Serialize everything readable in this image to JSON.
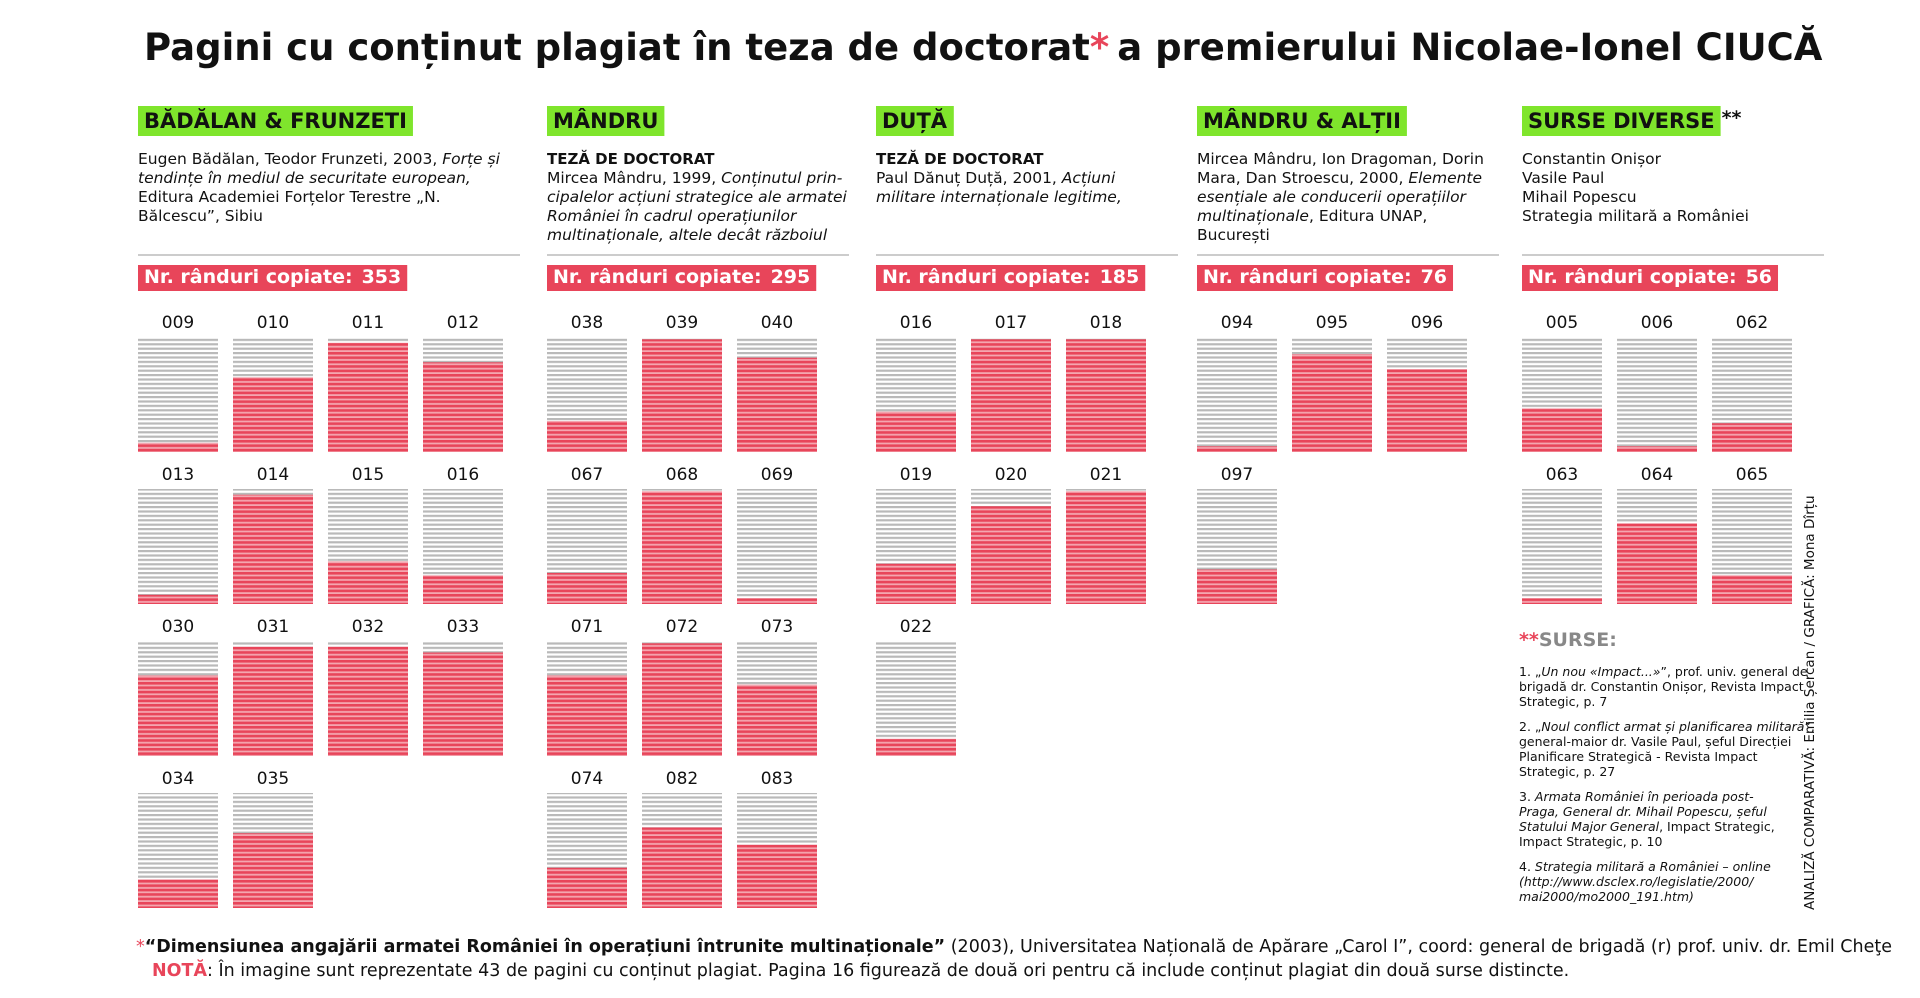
{
  "title": "Pagini cu conținut plagiat în teza de doctorat",
  "title_mark": "*",
  "title_rest": "a  premierului Nicolae-Ionel CIUCĂ",
  "groups": [
    {
      "name": "BĂDĂLAN & FRUNZETI",
      "source": [
        [
          {
            "text": "Eugen Bădălan, Teodor Frunzeti, 2003, "
          },
          {
            "text": "Forțe și",
            "italic": true
          }
        ],
        [
          {
            "text": "tendințe în mediul de securitate european,",
            "italic": true
          }
        ],
        [
          {
            "text": "Editura Academiei Forțelor Terestre „N."
          }
        ],
        [
          {
            "text": "Bălcescu”, Sibiu"
          }
        ]
      ],
      "count_label": "Nr. rânduri copiate:",
      "count": 353,
      "pages": [
        {
          "label": "009",
          "copied": 8
        },
        {
          "label": "010",
          "copied": 65
        },
        {
          "label": "011",
          "copied": 95
        },
        {
          "label": "012",
          "copied": 78
        },
        {
          "label": "013",
          "copied": 8
        },
        {
          "label": "014",
          "copied": 95
        },
        {
          "label": "015",
          "copied": 37
        },
        {
          "label": "016",
          "copied": 25
        },
        {
          "label": "030",
          "copied": 70
        },
        {
          "label": "031",
          "copied": 95
        },
        {
          "label": "032",
          "copied": 95
        },
        {
          "label": "033",
          "copied": 90
        },
        {
          "label": "034",
          "copied": 25
        },
        {
          "label": "035",
          "copied": 65
        }
      ]
    },
    {
      "name": "MÂNDRU",
      "doc_type": "TEZĂ DE DOCTORAT",
      "source": [
        [
          {
            "text": "Mircea Mândru, 1999, "
          },
          {
            "text": "Conținutul prin-",
            "italic": true
          }
        ],
        [
          {
            "text": "cipalelor acțiuni strategice ale armatei",
            "italic": true
          }
        ],
        [
          {
            "text": "României în cadrul operațiunilor",
            "italic": true
          }
        ],
        [
          {
            "text": "multinaționale, altele decât războiul",
            "italic": true
          }
        ]
      ],
      "count_label": "Nr. rânduri copiate:",
      "count": 295,
      "pages": [
        {
          "label": "038",
          "copied": 27
        },
        {
          "label": "039",
          "copied": 98
        },
        {
          "label": "040",
          "copied": 82
        },
        {
          "label": "067",
          "copied": 27
        },
        {
          "label": "068",
          "copied": 98
        },
        {
          "label": "069",
          "copied": 5
        },
        {
          "label": "071",
          "copied": 70
        },
        {
          "label": "072",
          "copied": 98
        },
        {
          "label": "073",
          "copied": 62
        },
        {
          "label": "074",
          "copied": 35
        },
        {
          "label": "082",
          "copied": 70
        },
        {
          "label": "083",
          "copied": 55
        }
      ]
    },
    {
      "name": "DUȚĂ",
      "doc_type": "TEZĂ DE DOCTORAT",
      "source": [
        [
          {
            "text": "Paul Dănuț Duță, 2001, "
          },
          {
            "text": "Acțiuni",
            "italic": true
          }
        ],
        [
          {
            "text": "militare internaționale legitime,",
            "italic": true
          }
        ]
      ],
      "count_label": "Nr. rânduri copiate:",
      "count": 185,
      "pages": [
        {
          "label": "016",
          "copied": 35
        },
        {
          "label": "017",
          "copied": 98
        },
        {
          "label": "018",
          "copied": 98
        },
        {
          "label": "019",
          "copied": 35
        },
        {
          "label": "020",
          "copied": 85
        },
        {
          "label": "021",
          "copied": 98
        },
        {
          "label": "022",
          "copied": 15
        }
      ]
    },
    {
      "name": "MÂNDRU & ALȚII",
      "source": [
        [
          {
            "text": "Mircea Mândru, Ion Dragoman, Dorin"
          }
        ],
        [
          {
            "text": "Mara, Dan Stroescu, 2000, "
          },
          {
            "text": "Elemente",
            "italic": true
          }
        ],
        [
          {
            "text": "esențiale ale conducerii operațiilor",
            "italic": true
          }
        ],
        [
          {
            "text": "multinaționale",
            "italic": true
          },
          {
            "text": ", Editura UNAP,"
          }
        ],
        [
          {
            "text": "București"
          }
        ]
      ],
      "count_label": "Nr. rânduri copiate:",
      "count": 76,
      "pages": [
        {
          "label": "094",
          "copied": 5
        },
        {
          "label": "095",
          "copied": 85
        },
        {
          "label": "096",
          "copied": 72
        },
        {
          "label": "097",
          "copied": 30
        }
      ]
    },
    {
      "name": "SURSE DIVERSE",
      "name_mark": "**",
      "source": [
        [
          {
            "text": "Constantin Onișor"
          }
        ],
        [
          {
            "text": "Vasile Paul"
          }
        ],
        [
          {
            "text": "Mihail Popescu"
          }
        ],
        [
          {
            "text": "Strategia militară a României"
          }
        ]
      ],
      "count_label": "Nr. rânduri copiate:",
      "count": 56,
      "pages": [
        {
          "label": "005",
          "copied": 38
        },
        {
          "label": "006",
          "copied": 5
        },
        {
          "label": "062",
          "copied": 25
        },
        {
          "label": "063",
          "copied": 5
        },
        {
          "label": "064",
          "copied": 70
        },
        {
          "label": "065",
          "copied": 25
        }
      ]
    }
  ],
  "sources": {
    "mark": "**",
    "title": "SURSE:",
    "items": [
      [
        [
          {
            "text": "1. „"
          },
          {
            "text": "Un nou «Impact...»",
            "italic": true
          },
          {
            "text": "”, prof. univ. general de"
          }
        ],
        [
          {
            "text": "brigadă dr. Constantin Onișor, Revista Impact"
          }
        ],
        [
          {
            "text": "Strategic, p. 7"
          }
        ]
      ],
      [
        [
          {
            "text": "2. „"
          },
          {
            "text": "Noul conflict armat și planificarea militară",
            "italic": true
          },
          {
            "text": "”,"
          }
        ],
        [
          {
            "text": "general-maior dr. Vasile Paul, șeful Direcției"
          }
        ],
        [
          {
            "text": "Planificare Strategică - Revista Impact"
          }
        ],
        [
          {
            "text": "Strategic, p. 27"
          }
        ]
      ],
      [
        [
          {
            "text": "3. "
          },
          {
            "text": "Armata României în perioada post-",
            "italic": true
          }
        ],
        [
          {
            "text": "Praga, General dr. Mihail Popescu, șeful",
            "italic": true
          }
        ],
        [
          {
            "text": "Statului Major General",
            "italic": true
          },
          {
            "text": ", Impact Strategic,"
          }
        ],
        [
          {
            "text": "Impact Strategic, p. 10"
          }
        ]
      ],
      [
        [
          {
            "text": "4. "
          },
          {
            "text": "Strategia militară a României – online",
            "italic": true
          }
        ],
        [
          {
            "text": "(http://www.dsclex.ro/legislatie/2000/",
            "italic": true
          }
        ],
        [
          {
            "text": "mai2000/mo2000_191.htm)",
            "italic": true
          }
        ]
      ]
    ]
  },
  "footnote": [
    {
      "text": "*",
      "red": true
    },
    {
      "text": "“Dimensiunea angajării armatei României în operațiuni întrunite multinaționale”",
      "bold": true
    },
    {
      "text": " (2003), Universitatea Națională de Apărare „Carol I”, coord: general de brigadă (r) prof. univ. dr. Emil Cheţe"
    }
  ],
  "note": [
    {
      "text": "NOTĂ",
      "red": true,
      "bold": true
    },
    {
      "text": ": În imagine sunt reprezentate 43 de pagini cu conținut plagiat. Pagina 16 figurează de două ori pentru că include conținut plagiat din două surse distincte."
    }
  ],
  "credit": "ANALIZĂ COMPARATIVĂ: Emilia Șercan / GRAFICĂ: Mona Dîrțu"
}
